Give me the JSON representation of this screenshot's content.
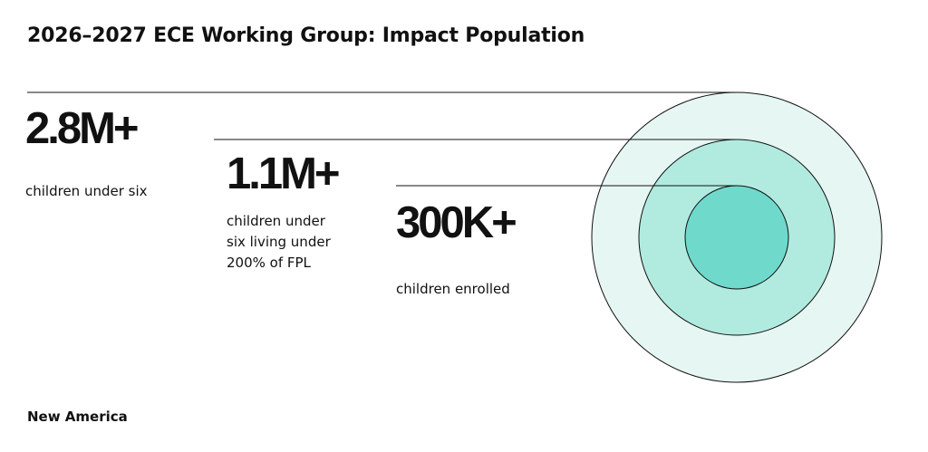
{
  "title": "2026–2027 ECE Working Group: Impact Population",
  "source": "New America",
  "colors": {
    "outer_ring": "#e6f6f3",
    "middle_ring": "#b1ebe0",
    "inner_ring": "#6fd9cc",
    "stroke": "#111111",
    "text": "#111111"
  },
  "chart_data": {
    "type": "nested-circles",
    "title": "2026–2027 ECE Working Group: Impact Population",
    "series": [
      {
        "value_label": "2.8M+",
        "value": 2800000,
        "description": "children under six",
        "description_lines": [
          "children under six"
        ]
      },
      {
        "value_label": "1.1M+",
        "value": 1100000,
        "description": "children under six living under 200% of FPL",
        "description_lines": [
          "children under",
          "six living under",
          "200% of FPL"
        ]
      },
      {
        "value_label": "300K+",
        "value": 300000,
        "description": "children enrolled",
        "description_lines": [
          "children enrolled"
        ]
      }
    ]
  }
}
